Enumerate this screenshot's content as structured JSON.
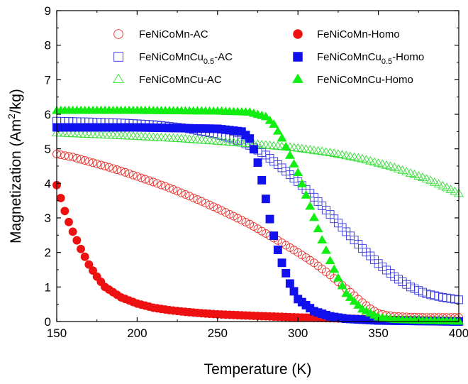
{
  "chart_data": {
    "type": "scatter",
    "xlabel": "Temperature (K)",
    "ylabel": "Magnetization (Am²/kg)",
    "xlim": [
      150,
      400
    ],
    "ylim": [
      0,
      9
    ],
    "xticks": [
      150,
      200,
      250,
      300,
      350,
      400
    ],
    "yticks": [
      0,
      1,
      2,
      3,
      4,
      5,
      6,
      7,
      8,
      9
    ],
    "grid": false,
    "legend_position": "top",
    "series": [
      {
        "name": "FeNiCoMn-AC",
        "base": "FeNiCoMn",
        "sub": "",
        "suffix": "-AC",
        "color": "#e8302a",
        "marker": "circle",
        "filled": false,
        "points": [
          [
            150,
            4.85
          ],
          [
            160,
            4.76
          ],
          [
            170,
            4.63
          ],
          [
            180,
            4.5
          ],
          [
            190,
            4.36
          ],
          [
            200,
            4.2
          ],
          [
            210,
            4.04
          ],
          [
            220,
            3.87
          ],
          [
            230,
            3.68
          ],
          [
            240,
            3.48
          ],
          [
            250,
            3.27
          ],
          [
            260,
            3.05
          ],
          [
            270,
            2.82
          ],
          [
            280,
            2.55
          ],
          [
            290,
            2.28
          ],
          [
            300,
            2.0
          ],
          [
            310,
            1.7
          ],
          [
            320,
            1.35
          ],
          [
            330,
            0.95
          ],
          [
            340,
            0.55
          ],
          [
            345,
            0.37
          ],
          [
            350,
            0.24
          ],
          [
            355,
            0.18
          ],
          [
            360,
            0.15
          ],
          [
            370,
            0.13
          ],
          [
            380,
            0.12
          ],
          [
            390,
            0.12
          ],
          [
            400,
            0.12
          ]
        ]
      },
      {
        "name": "FeNiCoMnCu0.5-AC",
        "base": "FeNiCoMnCu",
        "sub": "0.5",
        "suffix": "-AC",
        "color": "#3333dd",
        "marker": "square",
        "filled": false,
        "points": [
          [
            150,
            5.8
          ],
          [
            170,
            5.78
          ],
          [
            190,
            5.75
          ],
          [
            210,
            5.7
          ],
          [
            230,
            5.6
          ],
          [
            250,
            5.42
          ],
          [
            260,
            5.28
          ],
          [
            270,
            5.1
          ],
          [
            280,
            4.82
          ],
          [
            290,
            4.45
          ],
          [
            300,
            4.05
          ],
          [
            310,
            3.6
          ],
          [
            320,
            3.1
          ],
          [
            330,
            2.6
          ],
          [
            340,
            2.12
          ],
          [
            350,
            1.68
          ],
          [
            360,
            1.3
          ],
          [
            370,
            1.0
          ],
          [
            380,
            0.8
          ],
          [
            390,
            0.7
          ],
          [
            400,
            0.63
          ]
        ]
      },
      {
        "name": "FeNiCoMnCu-AC",
        "base": "FeNiCoMnCu",
        "sub": "",
        "suffix": "-AC",
        "color": "#33dd33",
        "marker": "triangle",
        "filled": false,
        "points": [
          [
            150,
            5.45
          ],
          [
            175,
            5.4
          ],
          [
            200,
            5.35
          ],
          [
            225,
            5.29
          ],
          [
            250,
            5.21
          ],
          [
            275,
            5.12
          ],
          [
            300,
            5.01
          ],
          [
            320,
            4.88
          ],
          [
            340,
            4.7
          ],
          [
            360,
            4.45
          ],
          [
            380,
            4.12
          ],
          [
            390,
            3.92
          ],
          [
            400,
            3.7
          ]
        ]
      },
      {
        "name": "FeNiCoMn-Homo",
        "base": "FeNiCoMn",
        "sub": "",
        "suffix": "-Homo",
        "color": "#ee1111",
        "marker": "circle",
        "filled": true,
        "points": [
          [
            150,
            3.95
          ],
          [
            153,
            3.5
          ],
          [
            156,
            3.05
          ],
          [
            160,
            2.6
          ],
          [
            165,
            2.1
          ],
          [
            170,
            1.65
          ],
          [
            175,
            1.3
          ],
          [
            180,
            1.0
          ],
          [
            190,
            0.7
          ],
          [
            200,
            0.52
          ],
          [
            210,
            0.4
          ],
          [
            220,
            0.33
          ],
          [
            230,
            0.28
          ],
          [
            240,
            0.24
          ],
          [
            250,
            0.21
          ],
          [
            260,
            0.19
          ],
          [
            275,
            0.16
          ],
          [
            300,
            0.12
          ],
          [
            325,
            0.09
          ],
          [
            350,
            0.06
          ],
          [
            375,
            0.04
          ],
          [
            400,
            0.02
          ]
        ]
      },
      {
        "name": "FeNiCoMnCu0.5-Homo",
        "base": "FeNiCoMnCu",
        "sub": "0.5",
        "suffix": "-Homo",
        "color": "#1111ee",
        "marker": "square",
        "filled": true,
        "points": [
          [
            150,
            5.62
          ],
          [
            200,
            5.62
          ],
          [
            250,
            5.58
          ],
          [
            265,
            5.5
          ],
          [
            270,
            5.3
          ],
          [
            274,
            4.8
          ],
          [
            277,
            4.2
          ],
          [
            280,
            3.55
          ],
          [
            283,
            2.85
          ],
          [
            286,
            2.3
          ],
          [
            290,
            1.7
          ],
          [
            295,
            1.1
          ],
          [
            300,
            0.65
          ],
          [
            310,
            0.3
          ],
          [
            320,
            0.15
          ],
          [
            330,
            0.08
          ],
          [
            350,
            0.03
          ],
          [
            400,
            0.0
          ]
        ]
      },
      {
        "name": "FeNiCoMnCu-Homo",
        "base": "FeNiCoMnCu",
        "sub": "",
        "suffix": "-Homo",
        "color": "#11ee11",
        "marker": "triangle",
        "filled": true,
        "points": [
          [
            150,
            6.1
          ],
          [
            200,
            6.1
          ],
          [
            250,
            6.08
          ],
          [
            270,
            6.05
          ],
          [
            280,
            5.92
          ],
          [
            285,
            5.7
          ],
          [
            290,
            5.3
          ],
          [
            295,
            4.8
          ],
          [
            300,
            4.3
          ],
          [
            305,
            3.65
          ],
          [
            310,
            3.0
          ],
          [
            315,
            2.35
          ],
          [
            320,
            1.75
          ],
          [
            325,
            1.25
          ],
          [
            330,
            0.8
          ],
          [
            340,
            0.35
          ],
          [
            350,
            0.12
          ],
          [
            360,
            0.05
          ],
          [
            380,
            0.02
          ],
          [
            400,
            0.0
          ]
        ]
      }
    ]
  }
}
